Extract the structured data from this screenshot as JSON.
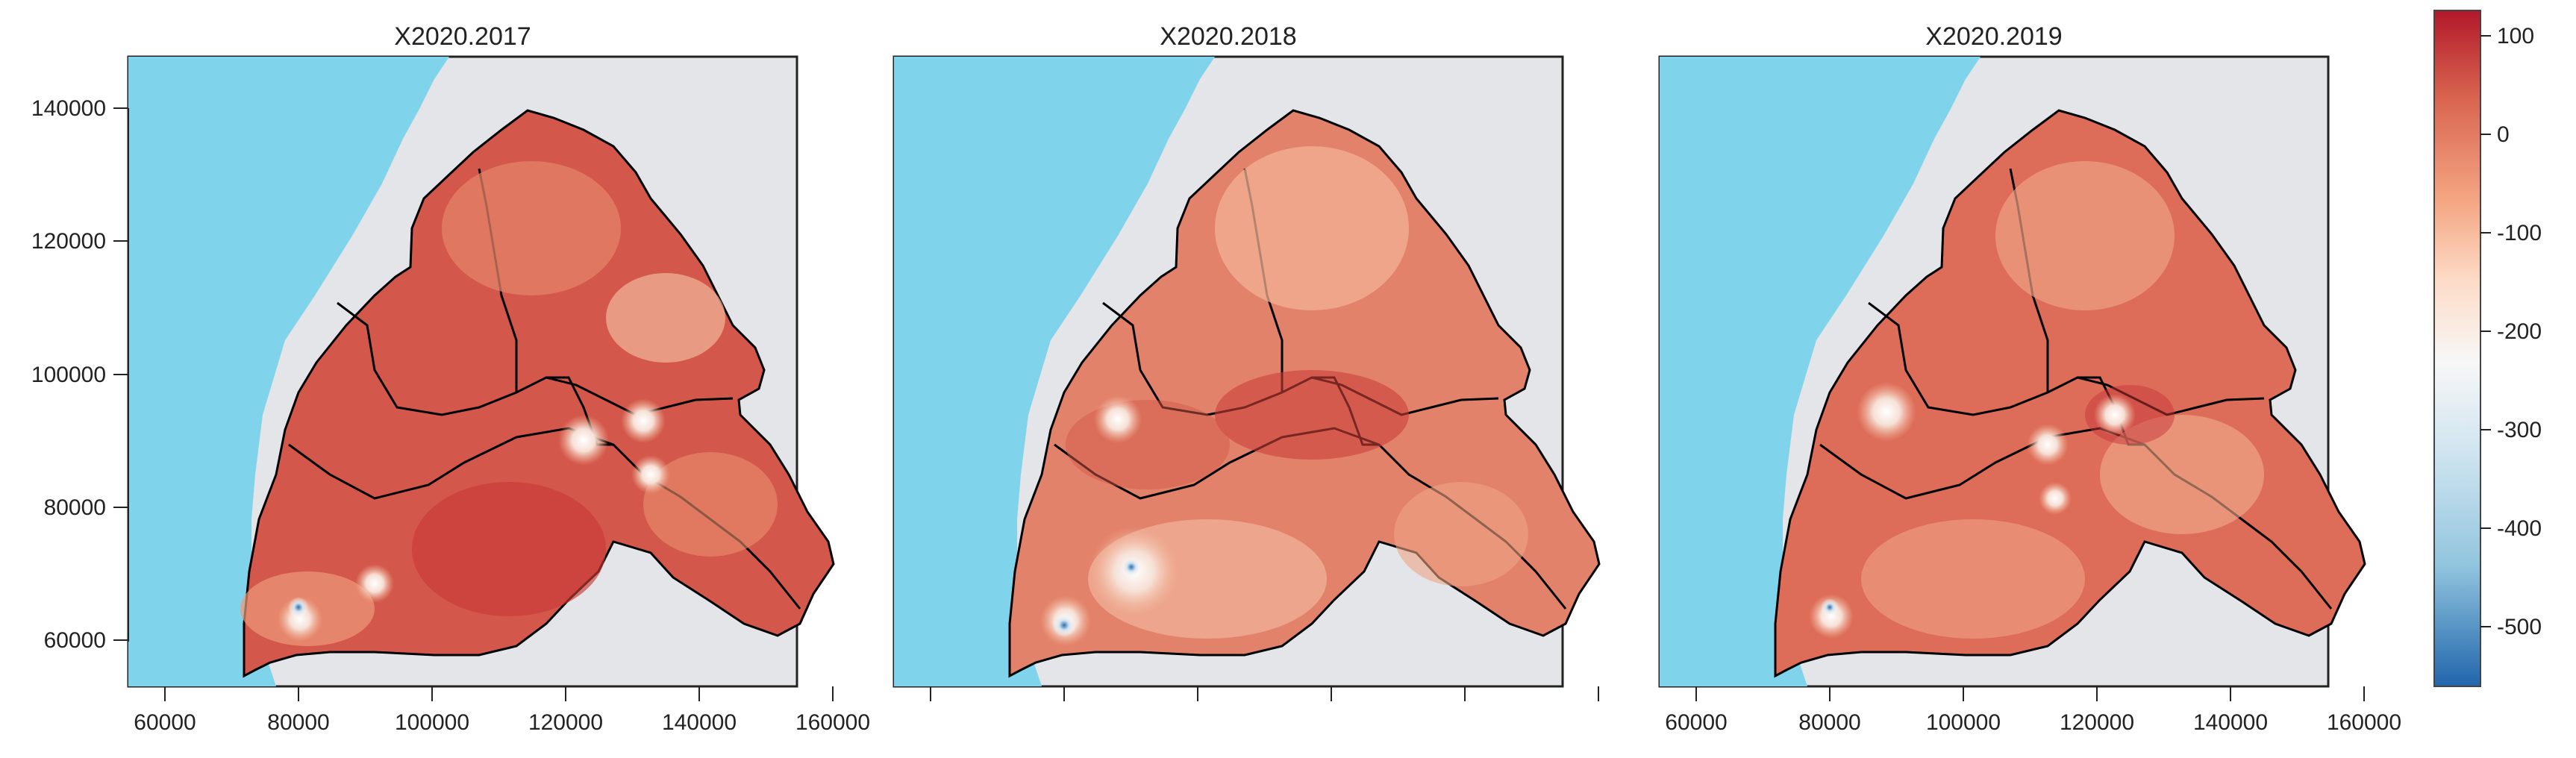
{
  "panels": [
    {
      "title": "X2020.2017",
      "show_x_labels": true,
      "show_y_labels": true
    },
    {
      "title": "X2020.2018",
      "show_x_labels": false,
      "show_y_labels": false
    },
    {
      "title": "X2020.2019",
      "show_x_labels": true,
      "show_y_labels": false
    }
  ],
  "axes": {
    "x_ticks": [
      "60000",
      "80000",
      "100000",
      "120000",
      "140000",
      "160000"
    ],
    "y_ticks": [
      "140000",
      "120000",
      "100000",
      "80000",
      "60000"
    ]
  },
  "colorbar": {
    "labels": [
      "100",
      "0",
      "-100",
      "-200",
      "-300",
      "-400",
      "-500"
    ]
  },
  "colors": {
    "sea": "#7fd3ea",
    "land_background": "#e3e5e8",
    "high": "#b22428",
    "mid": "#e98a69",
    "low": "#f3c7b0",
    "negative": "#2d70b0",
    "boundary": "#000000"
  }
}
